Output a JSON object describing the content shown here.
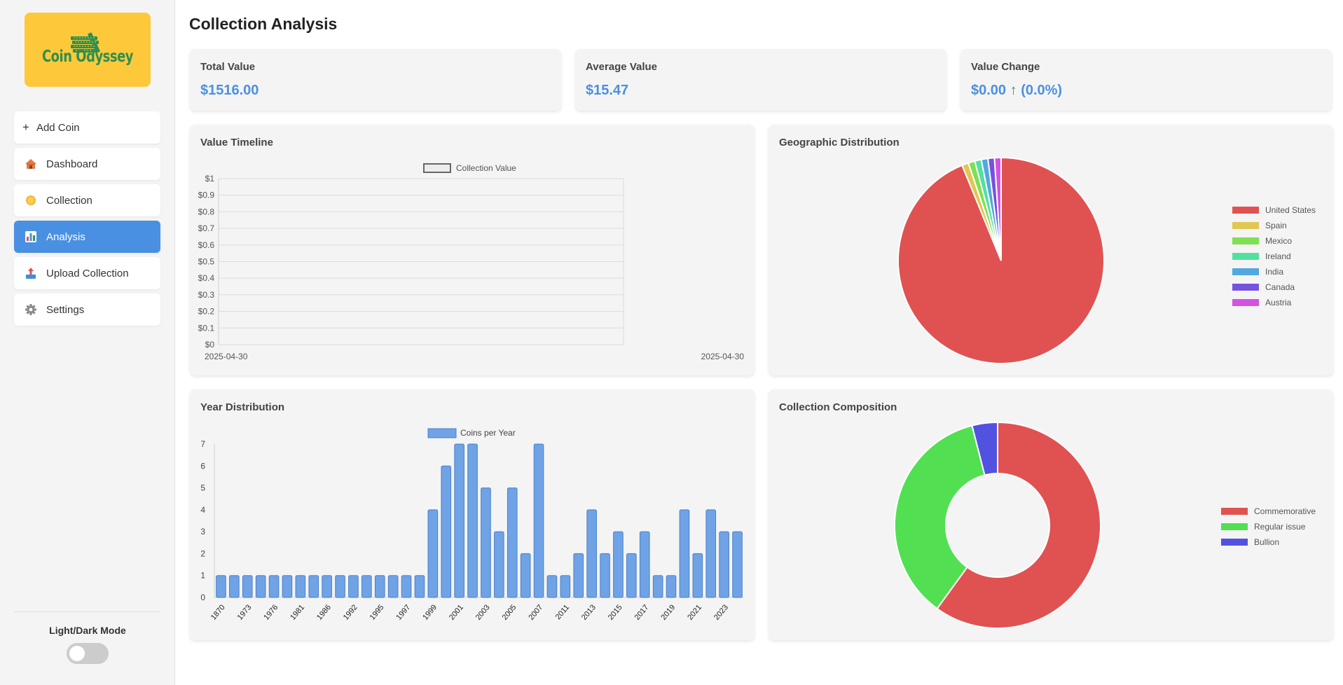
{
  "app": {
    "name": "Coin Odyssey"
  },
  "sidebar": {
    "items": [
      {
        "label": "Add Coin",
        "icon": "plus-icon",
        "active": false
      },
      {
        "label": "Dashboard",
        "icon": "house-icon",
        "active": false
      },
      {
        "label": "Collection",
        "icon": "coin-icon",
        "active": false
      },
      {
        "label": "Analysis",
        "icon": "bar-chart-icon",
        "active": true
      },
      {
        "label": "Upload Collection",
        "icon": "upload-icon",
        "active": false
      },
      {
        "label": "Settings",
        "icon": "gear-icon",
        "active": false
      }
    ],
    "mode_label": "Light/Dark Mode"
  },
  "page": {
    "title": "Collection Analysis"
  },
  "stats": {
    "total": {
      "label": "Total Value",
      "value": "$1516.00"
    },
    "average": {
      "label": "Average Value",
      "value": "$15.47"
    },
    "change": {
      "label": "Value Change",
      "amount": "$0.00",
      "arrow": "↑",
      "percent": "(0.0%)"
    }
  },
  "colors": {
    "accent": "#4a90e2",
    "positive": "#2e9a4b",
    "logo_bg": "#fdc93b",
    "logo_text": "#2e8f4e"
  },
  "chart_data": [
    {
      "id": "timeline",
      "title": "Value Timeline",
      "type": "line",
      "series": [
        {
          "name": "Collection Value",
          "values": []
        }
      ],
      "x_tick_labels": [
        "2025-04-30",
        "2025-04-30"
      ],
      "y_tick_labels": [
        "$0",
        "$0.1",
        "$0.2",
        "$0.3",
        "$0.4",
        "$0.5",
        "$0.6",
        "$0.7",
        "$0.8",
        "$0.9",
        "$1"
      ],
      "ylim": [
        0,
        1
      ],
      "grid": true,
      "legend_position": "top"
    },
    {
      "id": "geographic",
      "title": "Geographic Distribution",
      "type": "pie",
      "labels": [
        "United States",
        "Spain",
        "Mexico",
        "Ireland",
        "India",
        "Canada",
        "Austria"
      ],
      "values": [
        91,
        1,
        1,
        1,
        1,
        1,
        1
      ],
      "colors": [
        "#e05252",
        "#e0c752",
        "#7ee052",
        "#52e0a0",
        "#52a8e0",
        "#7652e0",
        "#d452e0"
      ],
      "legend_position": "right"
    },
    {
      "id": "year",
      "title": "Year Distribution",
      "type": "bar",
      "series": [
        {
          "name": "Coins per Year",
          "color": "#6fa3e6"
        }
      ],
      "values": [
        1,
        1,
        1,
        1,
        1,
        1,
        1,
        1,
        1,
        1,
        1,
        1,
        1,
        1,
        1,
        1,
        4,
        6,
        7,
        7,
        5,
        3,
        5,
        2,
        7,
        1,
        1,
        2,
        4,
        2,
        3,
        2,
        3,
        1,
        1,
        4,
        2,
        4,
        3,
        3
      ],
      "x_tick_labels": [
        "1870",
        "1973",
        "1976",
        "1981",
        "1986",
        "1992",
        "1995",
        "1997",
        "1999",
        "2001",
        "2003",
        "2005",
        "2007",
        "2011",
        "2013",
        "2015",
        "2017",
        "2019",
        "2021",
        "2023"
      ],
      "y_tick_labels": [
        "0",
        "1",
        "2",
        "3",
        "4",
        "5",
        "6",
        "7"
      ],
      "ylim": [
        0,
        7
      ],
      "grid": false,
      "legend_position": "top"
    },
    {
      "id": "composition",
      "title": "Collection Composition",
      "type": "doughnut",
      "labels": [
        "Commemorative",
        "Regular issue",
        "Bullion"
      ],
      "values": [
        60,
        36,
        4
      ],
      "colors": [
        "#e05252",
        "#52e052",
        "#5252e0"
      ],
      "legend_position": "right"
    }
  ]
}
